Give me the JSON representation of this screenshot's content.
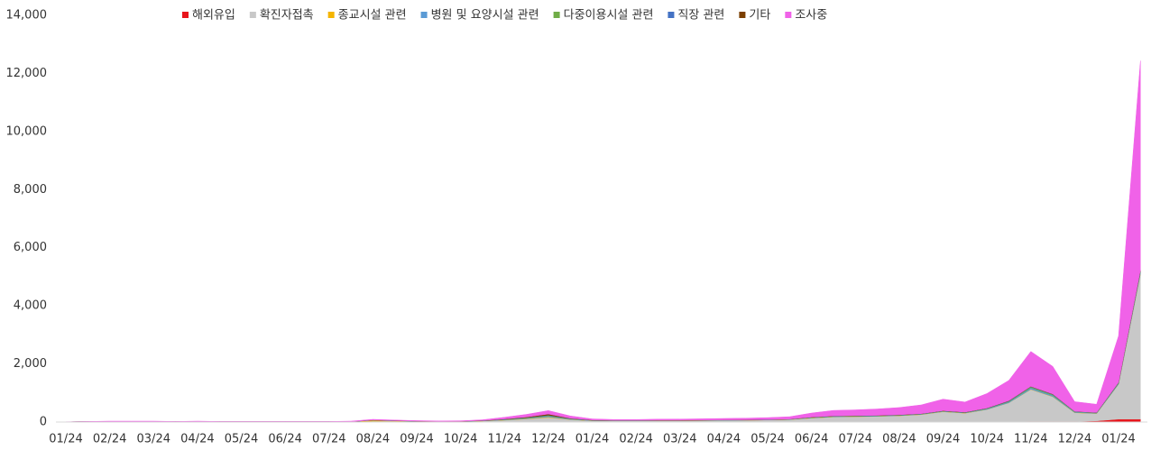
{
  "chart_data": {
    "type": "stacked_area",
    "categories": [
      "01/24",
      null,
      "02/24",
      null,
      "03/24",
      null,
      "04/24",
      null,
      "05/24",
      null,
      "06/24",
      null,
      "07/24",
      null,
      "08/24",
      null,
      "09/24",
      null,
      "10/24",
      null,
      "11/24",
      null,
      "12/24",
      null,
      "01/24",
      null,
      "02/24",
      null,
      "03/24",
      null,
      "04/24",
      null,
      "05/24",
      null,
      "06/24",
      null,
      "07/24",
      null,
      "08/24",
      null,
      "09/24",
      null,
      "10/24",
      null,
      "11/24",
      null,
      "12/24",
      null,
      "01/24",
      null
    ],
    "series": [
      {
        "name": "해외유입",
        "color": "#e8141b",
        "values": [
          3,
          5,
          5,
          5,
          5,
          5,
          5,
          5,
          5,
          5,
          5,
          5,
          5,
          5,
          5,
          5,
          5,
          5,
          5,
          5,
          5,
          5,
          5,
          5,
          5,
          5,
          5,
          5,
          5,
          5,
          5,
          5,
          5,
          5,
          5,
          5,
          5,
          5,
          5,
          5,
          5,
          5,
          10,
          10,
          20,
          20,
          20,
          40,
          100,
          100
        ]
      },
      {
        "name": "확진자접촉",
        "color": "#c8c8c8",
        "values": [
          3,
          8,
          12,
          12,
          12,
          8,
          12,
          8,
          8,
          8,
          8,
          8,
          8,
          12,
          25,
          25,
          18,
          12,
          15,
          30,
          60,
          100,
          150,
          80,
          40,
          35,
          35,
          40,
          40,
          45,
          50,
          55,
          65,
          80,
          130,
          170,
          180,
          190,
          210,
          250,
          350,
          300,
          420,
          650,
          1100,
          850,
          300,
          250,
          1200,
          5000
        ]
      },
      {
        "name": "종교시설 관련",
        "color": "#f5b500",
        "values": [
          0,
          0,
          0,
          0,
          0,
          0,
          0,
          0,
          0,
          0,
          0,
          0,
          0,
          0,
          30,
          10,
          5,
          2,
          2,
          2,
          5,
          10,
          20,
          5,
          2,
          2,
          2,
          2,
          2,
          2,
          2,
          2,
          2,
          2,
          5,
          5,
          5,
          5,
          5,
          5,
          5,
          5,
          5,
          5,
          10,
          10,
          5,
          5,
          5,
          5
        ]
      },
      {
        "name": "병원 및 요양시설 관련",
        "color": "#5b9bd5",
        "values": [
          0,
          0,
          0,
          0,
          0,
          0,
          0,
          0,
          0,
          0,
          0,
          0,
          0,
          0,
          0,
          0,
          0,
          0,
          0,
          5,
          10,
          20,
          30,
          15,
          10,
          5,
          5,
          5,
          5,
          5,
          5,
          5,
          5,
          5,
          10,
          10,
          10,
          10,
          10,
          10,
          10,
          10,
          20,
          30,
          50,
          40,
          20,
          15,
          20,
          50
        ]
      },
      {
        "name": "다중이용시설 관련",
        "color": "#70ad47",
        "values": [
          0,
          0,
          0,
          0,
          0,
          0,
          0,
          0,
          0,
          0,
          0,
          0,
          0,
          0,
          5,
          5,
          2,
          2,
          2,
          5,
          10,
          15,
          20,
          10,
          5,
          5,
          5,
          5,
          5,
          5,
          5,
          5,
          5,
          5,
          10,
          10,
          10,
          10,
          10,
          10,
          10,
          10,
          15,
          20,
          30,
          25,
          15,
          10,
          20,
          40
        ]
      },
      {
        "name": "직장 관련",
        "color": "#4472c4",
        "values": [
          0,
          0,
          0,
          0,
          0,
          0,
          0,
          0,
          0,
          0,
          0,
          0,
          0,
          0,
          2,
          2,
          2,
          2,
          2,
          2,
          5,
          5,
          10,
          5,
          3,
          3,
          3,
          3,
          3,
          3,
          3,
          3,
          3,
          3,
          5,
          5,
          5,
          5,
          5,
          5,
          5,
          5,
          5,
          10,
          10,
          10,
          5,
          5,
          10,
          20
        ]
      },
      {
        "name": "기타",
        "color": "#7b3f00",
        "values": [
          0,
          0,
          0,
          0,
          0,
          0,
          0,
          0,
          0,
          0,
          0,
          0,
          0,
          0,
          5,
          2,
          2,
          2,
          2,
          5,
          10,
          20,
          40,
          10,
          5,
          3,
          3,
          3,
          3,
          3,
          3,
          3,
          3,
          3,
          5,
          5,
          5,
          5,
          5,
          5,
          5,
          5,
          5,
          10,
          10,
          10,
          5,
          5,
          10,
          20
        ]
      },
      {
        "name": "조사중",
        "color": "#f062e8",
        "values": [
          2,
          7,
          13,
          13,
          13,
          7,
          13,
          7,
          7,
          7,
          7,
          7,
          7,
          13,
          20,
          20,
          15,
          12,
          15,
          25,
          60,
          90,
          120,
          80,
          40,
          30,
          30,
          35,
          40,
          45,
          50,
          55,
          65,
          80,
          140,
          190,
          200,
          220,
          250,
          300,
          400,
          350,
          500,
          700,
          1200,
          950,
          330,
          280,
          1600,
          7200
        ]
      }
    ],
    "ylim": [
      0,
      14000
    ],
    "yticks": [
      0,
      {
        "value": 2000,
        "label": "2,000"
      },
      {
        "value": 4000,
        "label": "4,000"
      },
      {
        "value": 6000,
        "label": "6,000"
      },
      {
        "value": 8000,
        "label": "8,000"
      },
      {
        "value": 10000,
        "label": "10,000"
      },
      {
        "value": 12000,
        "label": "12,000"
      },
      {
        "value": 14000,
        "label": "14,000"
      }
    ],
    "legend": "top"
  }
}
